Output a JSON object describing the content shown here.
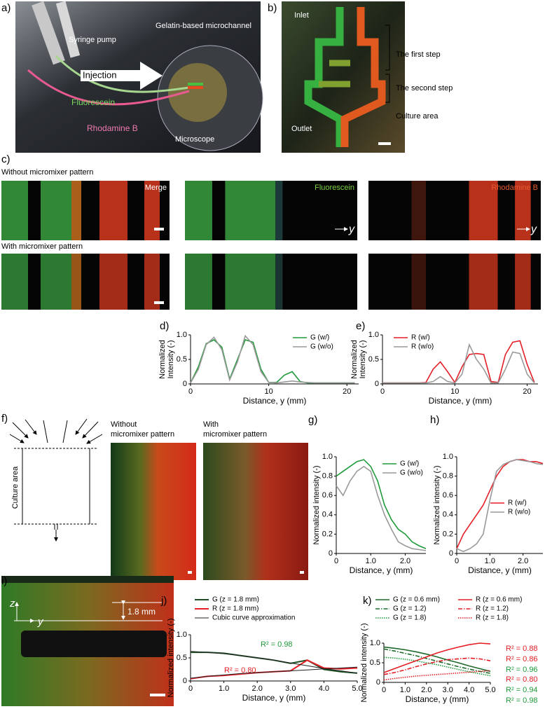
{
  "panel_labels": [
    "a)",
    "b)",
    "c)",
    "d)",
    "e)",
    "f)",
    "g)",
    "h)",
    "i)",
    "j)",
    "k)"
  ],
  "panel_a": {
    "labels": [
      "Syringe pump",
      "Gelatin-based microchannel",
      "Injection",
      "Fluorescein",
      "Rhodamine B",
      "Microscope"
    ]
  },
  "panel_b": {
    "labels": [
      "Inlet",
      "The first step",
      "The second step",
      "Culture area",
      "Outlet"
    ]
  },
  "panel_c": {
    "rows": [
      "Without micromixer pattern",
      "With micromixer pattern"
    ],
    "channels": [
      "Merge",
      "Fluorescein",
      "Rhodamine B"
    ],
    "axis": "y"
  },
  "panel_f": {
    "diagram_label": "Culture area",
    "image_titles": [
      [
        "Without",
        "micromixer pattern"
      ],
      [
        "With",
        "micromixer pattern"
      ]
    ]
  },
  "panel_i": {
    "axes": [
      "z",
      "y"
    ],
    "scale": "1.8 mm"
  },
  "chart_data": [
    {
      "type": "line",
      "xlabel": "Distance, y (mm)",
      "ylabel": [
        "Normalized",
        "Intensity (-)"
      ],
      "x": [
        0,
        1,
        2,
        3,
        4,
        5,
        6,
        7,
        8,
        9,
        10,
        11,
        12,
        13,
        14,
        15,
        16,
        17,
        18,
        19,
        20,
        21
      ],
      "xlim": [
        0,
        21.5
      ],
      "xticks": [
        0,
        10,
        20
      ],
      "ylim": [
        0,
        1
      ],
      "yticks": [
        0,
        {
          "value": 0.5,
          "label": "0.5"
        },
        {
          "value": 1,
          "label": "1.0"
        }
      ],
      "legend": "upper right",
      "series": [
        {
          "name": "G (w/)",
          "color": "#1f9a3a",
          "dash": "solid",
          "values": [
            0.02,
            0.35,
            0.82,
            0.9,
            0.75,
            0.1,
            0.5,
            0.9,
            0.85,
            0.3,
            0.03,
            0.03,
            0.18,
            0.25,
            0.05,
            0.02,
            0.02,
            0.02,
            0.02,
            0.02,
            0.02,
            0.02
          ]
        },
        {
          "name": "G (w/o)",
          "color": "#9a9a9a",
          "dash": "solid",
          "values": [
            0.02,
            0.3,
            0.8,
            0.95,
            0.7,
            0.08,
            0.45,
            0.98,
            0.8,
            0.25,
            0.03,
            0.02,
            0.04,
            0.06,
            0.04,
            0.03,
            0.02,
            0.02,
            0.02,
            0.02,
            0.02,
            0.02
          ]
        }
      ]
    },
    {
      "type": "line",
      "xlabel": "Distance, y (mm)",
      "ylabel": [
        "Normalized",
        "Intensity (-)"
      ],
      "x": [
        0,
        1,
        2,
        3,
        4,
        5,
        6,
        7,
        8,
        9,
        10,
        11,
        12,
        13,
        14,
        15,
        16,
        17,
        18,
        19,
        20,
        21
      ],
      "xlim": [
        0,
        21.5
      ],
      "xticks": [
        0,
        10,
        20
      ],
      "ylim": [
        0,
        1
      ],
      "yticks": [
        0,
        {
          "value": 0.5,
          "label": "0.5"
        },
        {
          "value": 1,
          "label": "1.0"
        }
      ],
      "legend": "upper left",
      "series": [
        {
          "name": "R (w/)",
          "color": "#e41e26",
          "dash": "solid",
          "values": [
            0.02,
            0.02,
            0.02,
            0.02,
            0.02,
            0.02,
            0.03,
            0.3,
            0.45,
            0.25,
            0.03,
            0.35,
            0.6,
            0.62,
            0.6,
            0.05,
            0.03,
            0.6,
            0.85,
            0.88,
            0.4,
            0.03
          ]
        },
        {
          "name": "R (w/o)",
          "color": "#9a9a9a",
          "dash": "solid",
          "values": [
            0.02,
            0.02,
            0.02,
            0.02,
            0.02,
            0.02,
            0.02,
            0.05,
            0.15,
            0.05,
            0.02,
            0.2,
            0.8,
            0.5,
            0.3,
            0.02,
            0.02,
            0.3,
            0.65,
            0.62,
            0.2,
            0.02
          ]
        }
      ]
    },
    {
      "type": "line",
      "xlabel": "Distance, y (mm)",
      "ylabel": [
        "Normalized intensity (-)"
      ],
      "x": [
        0,
        0.2,
        0.4,
        0.6,
        0.8,
        1.0,
        1.2,
        1.4,
        1.6,
        1.8,
        2.0,
        2.2,
        2.4,
        2.6
      ],
      "xlim": [
        0,
        2.6
      ],
      "xticks": [
        0,
        {
          "value": 1,
          "label": "1.0"
        },
        {
          "value": 2,
          "label": "2.0"
        }
      ],
      "ylim": [
        0,
        1
      ],
      "yticks": [
        0,
        {
          "value": 0.2,
          "label": "0.2"
        },
        {
          "value": 0.4,
          "label": "0.4"
        },
        {
          "value": 0.6,
          "label": "0.6"
        },
        {
          "value": 0.8,
          "label": "0.8"
        },
        {
          "value": 1,
          "label": "1.0"
        }
      ],
      "legend": "upper right",
      "series": [
        {
          "name": "G (w/)",
          "color": "#1f9a3a",
          "dash": "solid",
          "values": [
            0.8,
            0.85,
            0.9,
            0.95,
            0.97,
            0.9,
            0.75,
            0.5,
            0.35,
            0.25,
            0.2,
            0.12,
            0.08,
            0.05
          ]
        },
        {
          "name": "G (w/o)",
          "color": "#9a9a9a",
          "dash": "solid",
          "values": [
            0.7,
            0.6,
            0.75,
            0.85,
            0.9,
            0.85,
            0.6,
            0.4,
            0.25,
            0.12,
            0.08,
            0.05,
            0.04,
            0.03
          ]
        }
      ]
    },
    {
      "type": "line",
      "xlabel": "Distance, y (mm)",
      "ylabel": [
        "Normalized intensity (-)"
      ],
      "x": [
        0,
        0.2,
        0.4,
        0.6,
        0.8,
        1.0,
        1.2,
        1.4,
        1.6,
        1.8,
        2.0,
        2.2,
        2.4,
        2.6
      ],
      "xlim": [
        0,
        2.6
      ],
      "xticks": [
        0,
        {
          "value": 1,
          "label": "1.0"
        },
        {
          "value": 2,
          "label": "2.0"
        }
      ],
      "ylim": [
        0,
        1
      ],
      "yticks": [
        0,
        {
          "value": 0.2,
          "label": "0.2"
        },
        {
          "value": 0.4,
          "label": "0.4"
        },
        {
          "value": 0.6,
          "label": "0.6"
        },
        {
          "value": 0.8,
          "label": "0.8"
        },
        {
          "value": 1,
          "label": "1.0"
        }
      ],
      "legend": "center right",
      "series": [
        {
          "name": "R (w/)",
          "color": "#e41e26",
          "dash": "solid",
          "values": [
            0.05,
            0.2,
            0.3,
            0.4,
            0.5,
            0.65,
            0.8,
            0.9,
            0.95,
            0.97,
            0.97,
            0.95,
            0.95,
            0.93
          ]
        },
        {
          "name": "R (w/o)",
          "color": "#9a9a9a",
          "dash": "solid",
          "values": [
            0.05,
            0.02,
            0.05,
            0.1,
            0.2,
            0.55,
            0.85,
            0.92,
            0.95,
            0.97,
            0.96,
            0.95,
            0.93,
            0.92
          ]
        }
      ]
    },
    {
      "type": "line",
      "xlabel": "Distance, y (mm)",
      "ylabel": [
        "Normalized intensity (-)"
      ],
      "x": [
        0,
        0.5,
        1,
        1.5,
        2,
        2.5,
        3,
        3.5,
        4,
        4.5,
        5
      ],
      "xlim": [
        0,
        5
      ],
      "xticks": [
        0,
        {
          "value": 1,
          "label": "1.0"
        },
        {
          "value": 2,
          "label": "2.0"
        },
        {
          "value": 3,
          "label": "3.0"
        },
        {
          "value": 4,
          "label": "4.0"
        },
        {
          "value": 5,
          "label": "5.0"
        }
      ],
      "ylim": [
        0,
        1
      ],
      "yticks": [
        0,
        {
          "value": 0.5,
          "label": "0.5"
        },
        {
          "value": 1,
          "label": "1.0"
        }
      ],
      "legend": "above",
      "series": [
        {
          "name": "G (z = 1.8 mm)",
          "color": "#1d4f22",
          "dash": "solid",
          "width": 2,
          "values": [
            0.62,
            0.62,
            0.6,
            0.55,
            0.5,
            0.45,
            0.38,
            0.45,
            0.25,
            0.2,
            0.17
          ]
        },
        {
          "name": "R (z = 1.8 mm)",
          "color": "#e41e26",
          "dash": "solid",
          "width": 2,
          "values": [
            0.05,
            0.1,
            0.12,
            0.15,
            0.18,
            0.2,
            0.22,
            0.45,
            0.28,
            0.26,
            0.28
          ]
        },
        {
          "name": "Cubic curve approximation",
          "color": "#222222",
          "dash": "solid",
          "width": 1,
          "values": [
            0.64,
            0.62,
            0.59,
            0.55,
            0.5,
            0.45,
            0.39,
            0.33,
            0.27,
            0.22,
            0.17
          ]
        },
        {
          "color": "#222222",
          "dash": "solid",
          "width": 1,
          "values": [
            0.06,
            0.1,
            0.13,
            0.16,
            0.18,
            0.2,
            0.22,
            0.24,
            0.26,
            0.28,
            0.3
          ]
        }
      ],
      "annotations": [
        {
          "text": "R² = 0.98",
          "color": "#1f9a3a"
        },
        {
          "text": "R² = 0.80",
          "color": "#e41e26"
        }
      ]
    },
    {
      "type": "line",
      "xlabel": "Distance, y (mm)",
      "ylabel": [
        "Normalized intensity (-)"
      ],
      "x": [
        0,
        0.5,
        1,
        1.5,
        2,
        2.5,
        3,
        3.5,
        4,
        4.5,
        5
      ],
      "xlim": [
        0,
        5
      ],
      "xticks": [
        0,
        {
          "value": 1,
          "label": "1.0"
        },
        {
          "value": 2,
          "label": "2.0"
        },
        {
          "value": 3,
          "label": "3.0"
        },
        {
          "value": 4,
          "label": "4.0"
        },
        {
          "value": 5,
          "label": "5.0"
        }
      ],
      "ylim": [
        0,
        1
      ],
      "yticks": [
        0,
        {
          "value": 0.5,
          "label": "0.5"
        },
        {
          "value": 1,
          "label": "1.0"
        }
      ],
      "legend": "above",
      "series": [
        {
          "name": "G (z = 0.6 mm)",
          "color": "#1d6b2a",
          "dash": "solid",
          "values": [
            0.9,
            0.87,
            0.83,
            0.78,
            0.72,
            0.65,
            0.57,
            0.5,
            0.42,
            0.35,
            0.28
          ]
        },
        {
          "name": "G (z = 1.2)",
          "color": "#1d6b2a",
          "dash": "dashdot",
          "values": [
            0.85,
            0.8,
            0.74,
            0.68,
            0.61,
            0.54,
            0.47,
            0.4,
            0.34,
            0.28,
            0.23
          ]
        },
        {
          "name": "G (z = 1.8)",
          "color": "#1f9a3a",
          "dash": "dotted",
          "values": [
            0.64,
            0.62,
            0.59,
            0.55,
            0.5,
            0.45,
            0.39,
            0.33,
            0.27,
            0.22,
            0.17
          ]
        },
        {
          "name": "R (z = 0.6 mm)",
          "color": "#e41e26",
          "dash": "solid",
          "values": [
            0.25,
            0.35,
            0.45,
            0.55,
            0.65,
            0.75,
            0.83,
            0.9,
            0.96,
            1.0,
            0.98
          ]
        },
        {
          "name": "R (z = 1.2)",
          "color": "#e41e26",
          "dash": "dashdot",
          "values": [
            0.2,
            0.25,
            0.32,
            0.4,
            0.47,
            0.53,
            0.58,
            0.6,
            0.62,
            0.6,
            0.55
          ]
        },
        {
          "name": "R (z = 1.8)",
          "color": "#e41e26",
          "dash": "dotted",
          "values": [
            0.06,
            0.1,
            0.13,
            0.16,
            0.18,
            0.2,
            0.22,
            0.24,
            0.26,
            0.28,
            0.3
          ]
        }
      ],
      "annotations": [
        {
          "text": "R² = 0.88",
          "color": "#e41e26"
        },
        {
          "text": "R² = 0.86",
          "color": "#e41e26"
        },
        {
          "text": "R² = 0.96",
          "color": "#1f9a3a"
        },
        {
          "text": "R² = 0.80",
          "color": "#e41e26"
        },
        {
          "text": "R² = 0.94",
          "color": "#1f9a3a"
        },
        {
          "text": "R² = 0.98",
          "color": "#1f9a3a"
        }
      ]
    }
  ]
}
